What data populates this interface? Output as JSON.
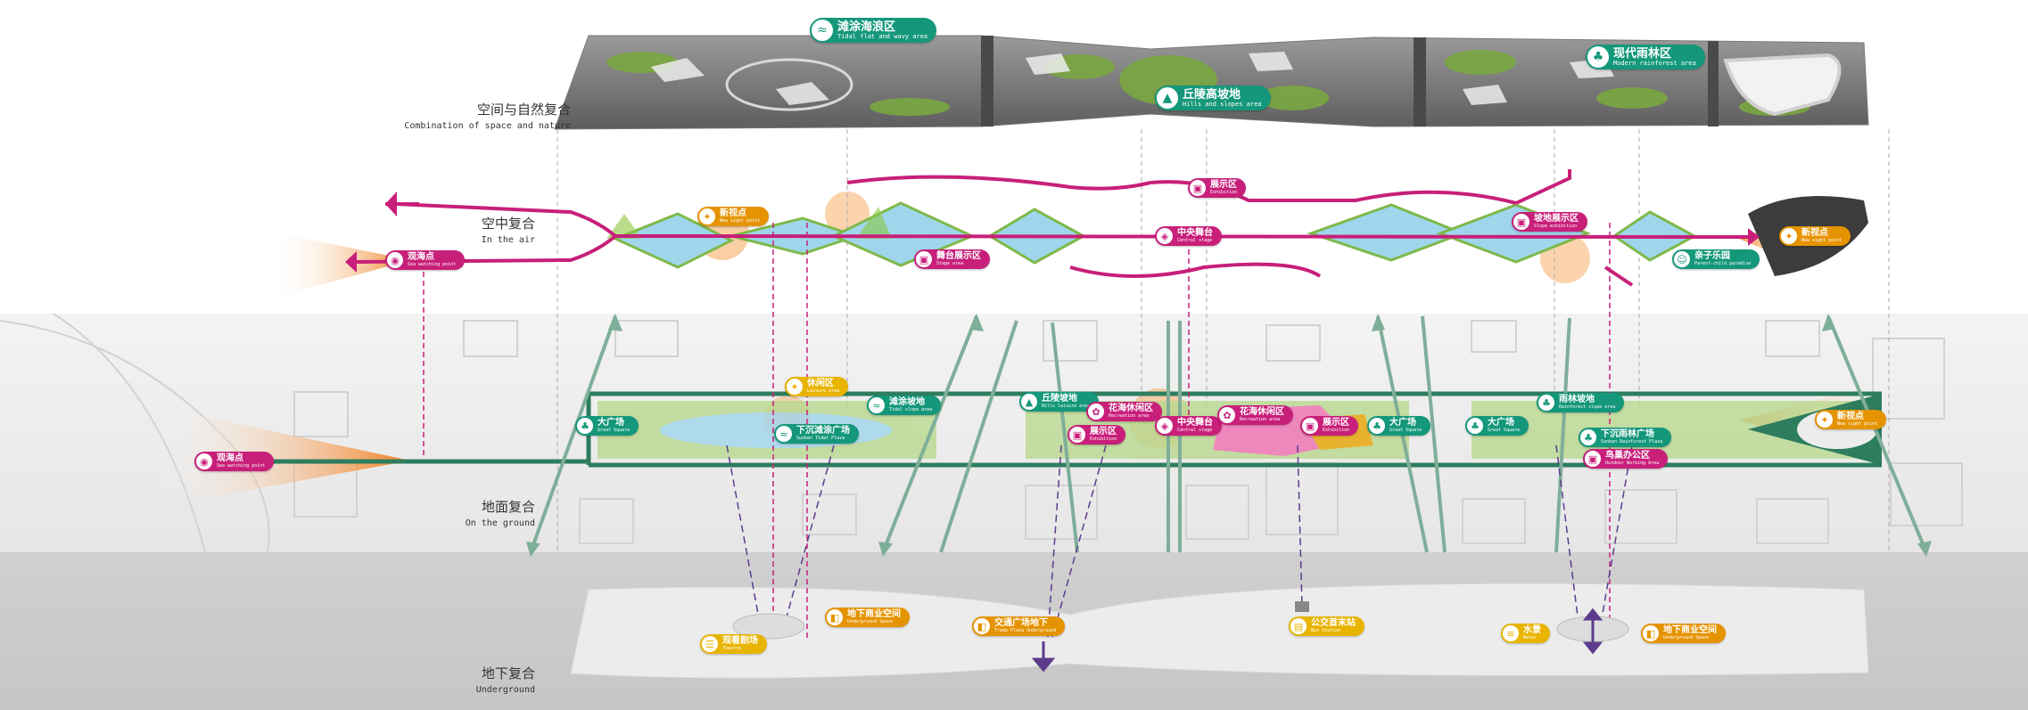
{
  "colors": {
    "green": "#14977a",
    "pink": "#c81f7a",
    "yellow": "#e8b400",
    "orange": "#e59300",
    "lightblue": "#9fd6ec",
    "grass": "#8bbf4a"
  },
  "layers": {
    "nature": {
      "cn": "空间与自然复合",
      "en": "Combination of space and nature"
    },
    "air": {
      "cn": "空中复合",
      "en": "In the air"
    },
    "ground": {
      "cn": "地面复合",
      "en": "On the ground"
    },
    "underground": {
      "cn": "地下复合",
      "en": "Underground"
    }
  },
  "nature_tags": {
    "tidal": {
      "cn": "滩涂海浪区",
      "en": "Tidal flat and wavy area",
      "icon": "wave-icon"
    },
    "hills": {
      "cn": "丘陵高坡地",
      "en": "Hills and slopes area",
      "icon": "hill-icon"
    },
    "rainforest": {
      "cn": "现代雨林区",
      "en": "Modern rainforest area",
      "icon": "tree-icon"
    }
  },
  "air_tags": {
    "viewing": {
      "cn": "观海点",
      "en": "Sea watching point",
      "icon": "eye-icon"
    },
    "newsight": {
      "cn": "新视点",
      "en": "New sight point",
      "icon": "star-icon"
    },
    "exhibit_top": {
      "cn": "展示区",
      "en": "Exhibition",
      "icon": "exhibit-icon"
    },
    "central": {
      "cn": "中央舞台",
      "en": "Central stage",
      "icon": "stage-icon"
    },
    "stage_area": {
      "cn": "舞台展示区",
      "en": "Stage area",
      "icon": "exhibit-icon"
    },
    "slope_exhibit": {
      "cn": "坡地展示区",
      "en": "Slope exhibition",
      "icon": "exhibit-icon"
    },
    "paradise": {
      "cn": "亲子乐园",
      "en": "Parent-child paradise",
      "icon": "family-icon"
    },
    "endpoint": {
      "cn": "新视点",
      "en": "New sight point",
      "icon": "star-icon"
    }
  },
  "ground_tags": {
    "viewing": {
      "cn": "观海点",
      "en": "Sea watching point",
      "icon": "eye-icon"
    },
    "leisure": {
      "cn": "休闲区",
      "en": "Leisure area",
      "icon": "star-icon"
    },
    "great_square_left": {
      "cn": "大广场",
      "en": "Great Square",
      "icon": "tree-icon"
    },
    "sunken_tidal": {
      "cn": "下沉滩涂广场",
      "en": "Sunken Tidal Plaza",
      "icon": "wave-icon"
    },
    "tidal_slope": {
      "cn": "滩涂坡地",
      "en": "Tidal slope area",
      "icon": "wave-icon"
    },
    "hills_leisure": {
      "cn": "丘陵坡地",
      "en": "Hills leisure area",
      "icon": "hill-icon"
    },
    "flower_left": {
      "cn": "花海休闲区",
      "en": "Recreation area",
      "icon": "flower-icon"
    },
    "exhibit_left": {
      "cn": "展示区",
      "en": "Exhibition",
      "icon": "exhibit-icon"
    },
    "central": {
      "cn": "中央舞台",
      "en": "Central stage",
      "icon": "stage-icon"
    },
    "flower_right": {
      "cn": "花海休闲区",
      "en": "Recreation area",
      "icon": "flower-icon"
    },
    "exhibit_right": {
      "cn": "展示区",
      "en": "Exhibition",
      "icon": "exhibit-icon"
    },
    "great_square_mid": {
      "cn": "大广场",
      "en": "Great Square",
      "icon": "tree-icon"
    },
    "great_square_right": {
      "cn": "大广场",
      "en": "Great Square",
      "icon": "tree-icon"
    },
    "rainforest_slope": {
      "cn": "雨林坡地",
      "en": "Rainforest slope area",
      "icon": "tree-icon"
    },
    "sunken_rainforest": {
      "cn": "下沉雨林广场",
      "en": "Sunken Rainforest Plaza",
      "icon": "tree-icon"
    },
    "bird_office": {
      "cn": "鸟巢办公区",
      "en": "Outdoor Working Area",
      "icon": "exhibit-icon"
    },
    "newsight": {
      "cn": "新视点",
      "en": "New sight point",
      "icon": "star-icon"
    }
  },
  "underground_tags": {
    "mall_left": {
      "cn": "地下商业空间",
      "en": "Underground Space",
      "icon": "bag-icon"
    },
    "theatre": {
      "cn": "观看剧场",
      "en": "Theatre",
      "icon": "theatre-icon"
    },
    "cross_square": {
      "cn": "交通广场地下",
      "en": "Trade Plaza Underground",
      "icon": "bag-icon"
    },
    "office": {
      "cn": "公交首末站",
      "en": "Bus Station",
      "icon": "bus-icon"
    },
    "water": {
      "cn": "水景",
      "en": "Water",
      "icon": "water-icon"
    },
    "mall_right": {
      "cn": "地下商业空间",
      "en": "Underground Space",
      "icon": "bag-icon"
    }
  }
}
